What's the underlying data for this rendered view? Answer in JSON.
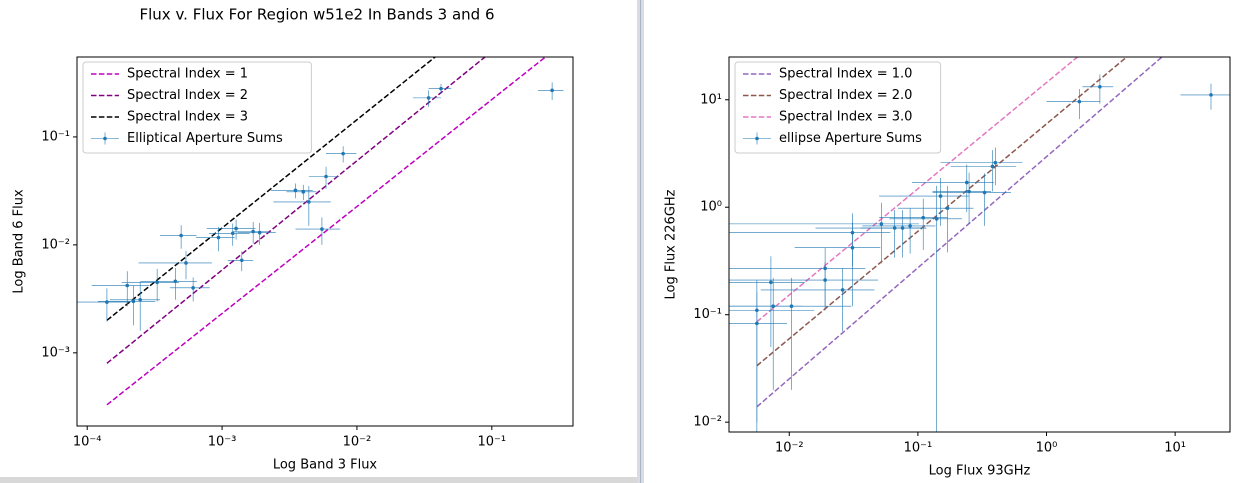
{
  "chart_data": [
    {
      "type": "scatter",
      "title": "Flux v. Flux For Region w51e2 In Bands 3 and 6",
      "xlabel": "Log Band 3 Flux",
      "ylabel": "Log Band 6 Flux",
      "xscale": "log",
      "yscale": "log",
      "legend": "upper left",
      "xlim": [
        8.4e-05,
        0.4
      ],
      "ylim": [
        0.00021,
        0.55
      ],
      "xticks": [
        {
          "value": 0.0001,
          "label": "10⁻⁴"
        },
        {
          "value": 0.001,
          "label": "10⁻³"
        },
        {
          "value": 0.01,
          "label": "10⁻²"
        },
        {
          "value": 0.1,
          "label": "10⁻¹"
        }
      ],
      "yticks": [
        {
          "value": 0.001,
          "label": "10⁻³"
        },
        {
          "value": 0.01,
          "label": "10⁻²"
        },
        {
          "value": 0.1,
          "label": "10⁻¹"
        }
      ],
      "series": [
        {
          "name": "Spectral Index = 1",
          "color": "#bf00bf",
          "x": [
            0.00014,
            0.25
          ],
          "values": [
            0.00033,
            0.55
          ]
        },
        {
          "name": "Spectral Index = 2",
          "color": "#800080",
          "x": [
            0.00014,
            0.089
          ],
          "values": [
            0.0008,
            0.55
          ]
        },
        {
          "name": "Spectral Index = 3",
          "color": "#000000",
          "x": [
            0.00014,
            0.038
          ],
          "values": [
            0.002,
            0.55
          ]
        },
        {
          "name": "Elliptical Aperture Sums",
          "color": "#1f77b4",
          "x": [
            0.00014,
            0.000198,
            0.00022,
            0.000247,
            0.00033,
            0.00045,
            0.000497,
            0.00054,
            0.00061,
            0.00094,
            0.0012,
            0.00127,
            0.0014,
            0.0017,
            0.0019,
            0.0035,
            0.004,
            0.0044,
            0.0055,
            0.0059,
            0.0079,
            0.034,
            0.042,
            0.28
          ],
          "values": [
            0.00295,
            0.0042,
            0.003,
            0.0031,
            0.0045,
            0.0046,
            0.0122,
            0.0068,
            0.004,
            0.0117,
            0.0128,
            0.0142,
            0.0072,
            0.0133,
            0.013,
            0.032,
            0.031,
            0.025,
            0.014,
            0.043,
            0.07,
            0.23,
            0.28,
            0.27
          ],
          "xerr": [
            7e-05,
            9e-05,
            0.0001,
            0.0001,
            0.00015,
            0.0002,
            0.00015,
            0.0003,
            0.0002,
            0.0003,
            0.0004,
            0.0005,
            0.0003,
            0.0005,
            0.0006,
            0.0012,
            0.001,
            0.002,
            0.002,
            0.0015,
            0.002,
            0.008,
            0.008,
            0.06
          ],
          "yerr": [
            0.001,
            0.0015,
            0.0012,
            0.0015,
            0.0015,
            0.0015,
            0.003,
            0.002,
            0.001,
            0.003,
            0.003,
            0.003,
            0.0015,
            0.003,
            0.003,
            0.005,
            0.005,
            0.01,
            0.004,
            0.01,
            0.012,
            0.04,
            0.03,
            0.05
          ]
        }
      ]
    },
    {
      "type": "scatter",
      "xlabel": "Log Flux 93GHz",
      "ylabel": "Log Flux 226GHz",
      "xscale": "log",
      "yscale": "log",
      "legend": "upper left",
      "xlim": [
        0.0034,
        26.7
      ],
      "ylim": [
        0.0081,
        25
      ],
      "xticks": [
        {
          "value": 0.01,
          "label": "10⁻²"
        },
        {
          "value": 0.1,
          "label": "10⁻¹"
        },
        {
          "value": 1,
          "label": "10⁰"
        },
        {
          "value": 10,
          "label": "10¹"
        }
      ],
      "yticks": [
        {
          "value": 0.01,
          "label": "10⁻²"
        },
        {
          "value": 0.1,
          "label": "10⁻¹"
        },
        {
          "value": 1,
          "label": "10⁰"
        },
        {
          "value": 10,
          "label": "10¹"
        }
      ],
      "series": [
        {
          "name": "Spectral Index = 1.0",
          "color": "#9467bd",
          "x": [
            0.0056,
            7.9
          ],
          "values": [
            0.0139,
            25
          ]
        },
        {
          "name": "Spectral Index = 2.0",
          "color": "#8c564b",
          "x": [
            0.0056,
            4.2
          ],
          "values": [
            0.0335,
            25
          ]
        },
        {
          "name": "Spectral Index = 3.0",
          "color": "#e377c2",
          "x": [
            0.0056,
            1.74
          ],
          "values": [
            0.086,
            25
          ]
        },
        {
          "name": "ellipse Aperture Sums",
          "color": "#1f77b4",
          "x": [
            0.0056,
            0.0056,
            0.0072,
            0.0075,
            0.0104,
            0.019,
            0.019,
            0.026,
            0.031,
            0.031,
            0.052,
            0.066,
            0.076,
            0.087,
            0.11,
            0.14,
            0.15,
            0.17,
            0.24,
            0.25,
            0.33,
            0.38,
            0.4,
            1.8,
            2.6,
            19
          ],
          "values": [
            0.11,
            0.083,
            0.2,
            0.12,
            0.12,
            0.27,
            0.21,
            0.17,
            0.58,
            0.42,
            0.7,
            0.64,
            0.64,
            0.67,
            0.8,
            0.78,
            1.27,
            0.98,
            1.7,
            1.4,
            1.37,
            2.4,
            2.6,
            9.6,
            13.2,
            11.1
          ],
          "xerr": [
            0.01,
            0.004,
            0.006,
            0.005,
            0.02,
            0.02,
            0.03,
            0.02,
            0.03,
            0.02,
            0.05,
            0.05,
            0.04,
            0.05,
            0.06,
            0.08,
            0.1,
            0.1,
            0.15,
            0.12,
            0.2,
            0.2,
            0.25,
            0.8,
            0.7,
            8
          ],
          "yerr": [
            0.1,
            0.08,
            0.15,
            0.1,
            0.1,
            0.15,
            0.1,
            0.1,
            0.3,
            0.3,
            0.4,
            0.3,
            0.3,
            0.3,
            0.4,
            0.8,
            0.6,
            0.6,
            0.8,
            0.7,
            0.7,
            1,
            1,
            3,
            4,
            3
          ]
        }
      ]
    }
  ]
}
